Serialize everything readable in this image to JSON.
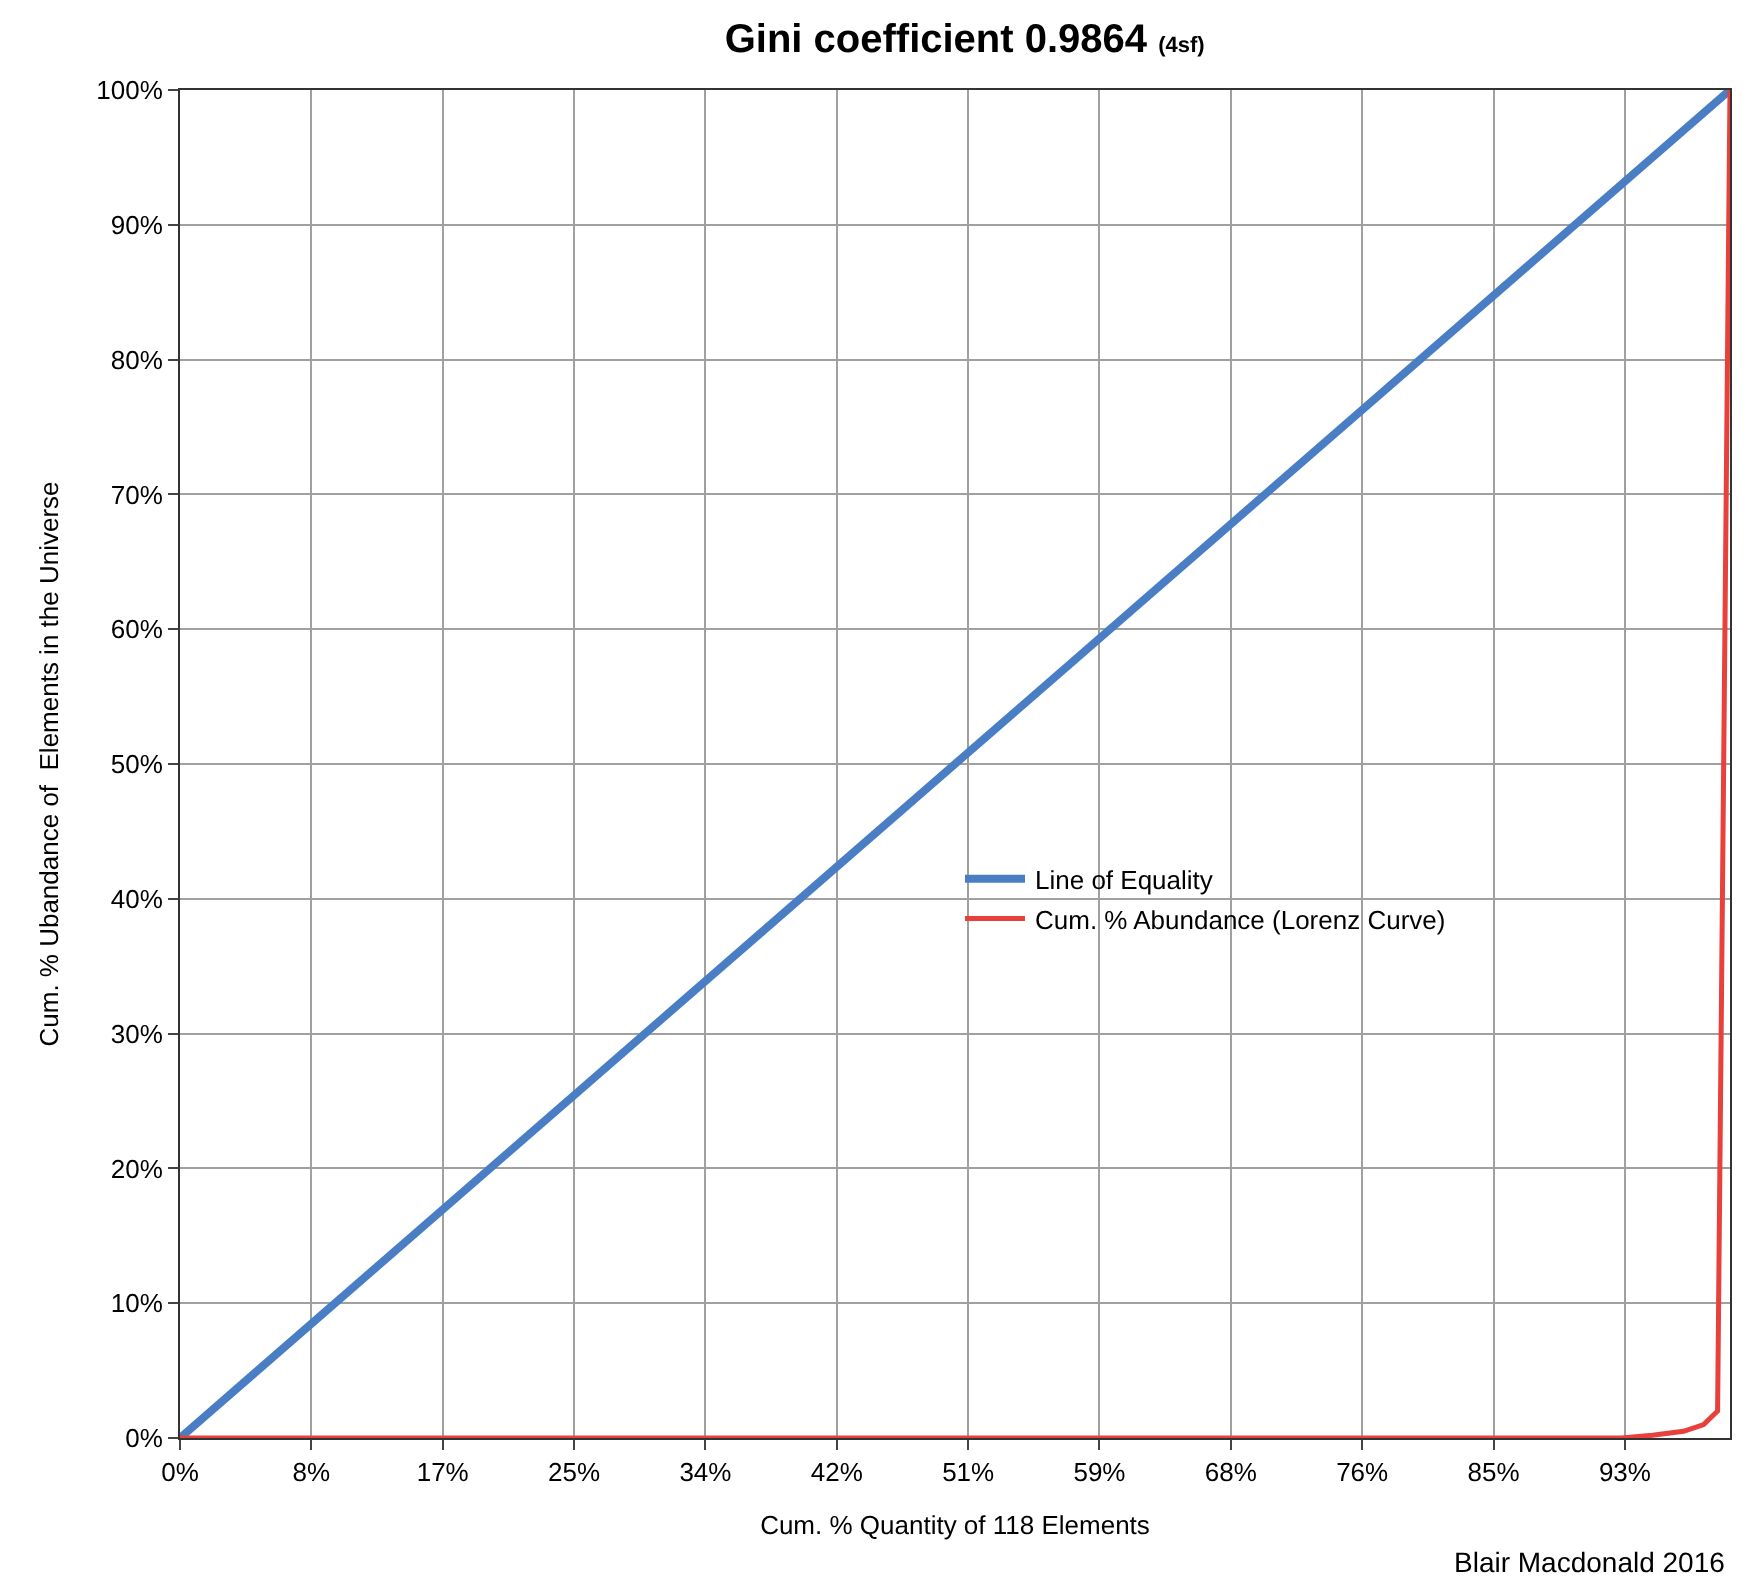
{
  "chart_data": {
    "type": "line",
    "title": "Gini coefficient 0.9864 $_{(4sf)}$",
    "xlabel": "Cum. % Quantity of 118 Elements",
    "ylabel": "Cum. % Ubandance of  Elements in the Universe",
    "series": [
      {
        "name": "Line of Equality",
        "color": "#4a7ec4",
        "x": [
          0,
          100
        ],
        "values": [
          0,
          100
        ]
      },
      {
        "name": "Cum. % Abundance (Lorenz Curve)",
        "color": "#e8403a",
        "x": [
          0,
          93,
          95,
          97,
          98.3,
          99.2,
          100
        ],
        "values": [
          0,
          0,
          0.2,
          0.5,
          1,
          2,
          100
        ]
      }
    ],
    "xlim": [
      0,
      100
    ],
    "ylim": [
      0,
      100
    ],
    "xticks": [
      {
        "value": 0,
        "label": "0%"
      },
      {
        "value": 8.47,
        "label": "8%"
      },
      {
        "value": 16.95,
        "label": "17%"
      },
      {
        "value": 25.42,
        "label": "25%"
      },
      {
        "value": 33.9,
        "label": "34%"
      },
      {
        "value": 42.37,
        "label": "42%"
      },
      {
        "value": 50.85,
        "label": "51%"
      },
      {
        "value": 59.32,
        "label": "59%"
      },
      {
        "value": 67.8,
        "label": "68%"
      },
      {
        "value": 76.27,
        "label": "76%"
      },
      {
        "value": 84.75,
        "label": "85%"
      },
      {
        "value": 93.22,
        "label": "93%"
      }
    ],
    "yticks": [
      {
        "value": 0,
        "label": "0%"
      },
      {
        "value": 10,
        "label": "10%"
      },
      {
        "value": 20,
        "label": "20%"
      },
      {
        "value": 30,
        "label": "30%"
      },
      {
        "value": 40,
        "label": "40%"
      },
      {
        "value": 50,
        "label": "50%"
      },
      {
        "value": 60,
        "label": "60%"
      },
      {
        "value": 70,
        "label": "70%"
      },
      {
        "value": 80,
        "label": "80%"
      },
      {
        "value": 90,
        "label": "90%"
      },
      {
        "value": 100,
        "label": "100%"
      }
    ],
    "annotations": [
      "Blair Macdonald 2016"
    ],
    "grid": true,
    "legend": "center",
    "marker": "none",
    "line_style": "solid"
  }
}
